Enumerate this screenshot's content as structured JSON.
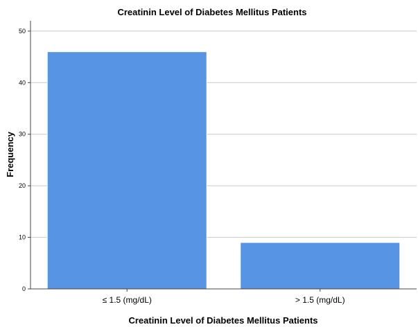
{
  "chart_data": {
    "type": "bar",
    "title": "Creatinin Level of Diabetes Mellitus Patients",
    "xlabel": "Creatinin Level of Diabetes Mellitus Patients",
    "ylabel": "Frequency",
    "categories": [
      "≤  1.5 (mg/dL)",
      ">  1.5 (mg/dL)"
    ],
    "values": [
      46,
      9
    ],
    "ylim": [
      0,
      52
    ],
    "yticks": [
      0,
      10,
      20,
      30,
      40,
      50
    ],
    "grid": true,
    "legend": "none",
    "bar_color": "#5794e3",
    "bar_edge_color": "#ffffff"
  }
}
